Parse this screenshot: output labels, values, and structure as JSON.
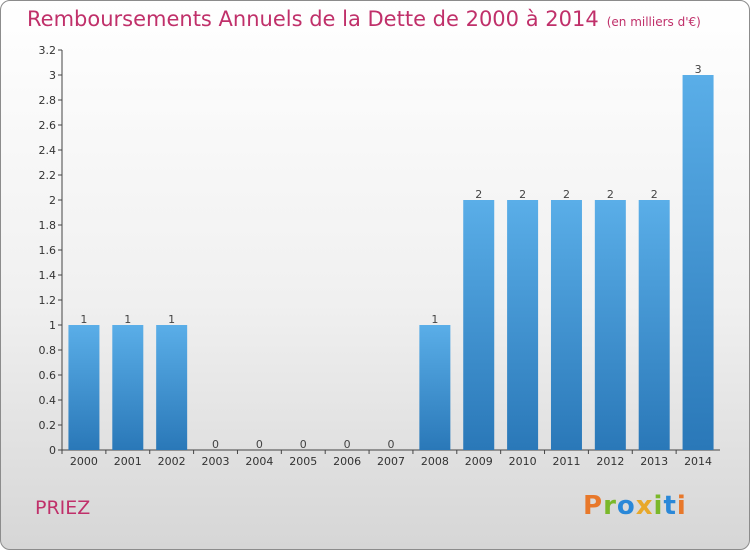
{
  "header": {
    "title": "Remboursements Annuels de la Dette de 2000 à 2014",
    "unit": "(en milliers d'€)"
  },
  "footer": {
    "city": "PRIEZ",
    "logo": "Proxiti"
  },
  "colors": {
    "title": "#c0306a",
    "bar_light": "#5aaee8",
    "bar_dark": "#2a78b8",
    "logo_letters": [
      "#e8782a",
      "#7ab82a",
      "#2a88d8",
      "#e8a82a",
      "#7ab82a",
      "#2a88d8",
      "#e8782a"
    ]
  },
  "chart_data": {
    "type": "bar",
    "categories": [
      "2000",
      "2001",
      "2002",
      "2003",
      "2004",
      "2005",
      "2006",
      "2007",
      "2008",
      "2009",
      "2010",
      "2011",
      "2012",
      "2013",
      "2014"
    ],
    "values": [
      1,
      1,
      1,
      0,
      0,
      0,
      0,
      0,
      1,
      2,
      2,
      2,
      2,
      2,
      3
    ],
    "data_labels": [
      "1",
      "1",
      "1",
      "0",
      "0",
      "0",
      "0",
      "0",
      "1",
      "2",
      "2",
      "2",
      "2",
      "2",
      "3"
    ],
    "title": "Remboursements Annuels de la Dette de 2000 à 2014",
    "xlabel": "",
    "ylabel": "",
    "ylim": [
      0,
      3.2
    ],
    "yticks": [
      0,
      0.2,
      0.4,
      0.6,
      0.8,
      1,
      1.2,
      1.4,
      1.6,
      1.8,
      2,
      2.2,
      2.4,
      2.6,
      2.8,
      3,
      3.2
    ],
    "ytick_labels": [
      "0",
      "0.2",
      "0.4",
      "0.6",
      "0.8",
      "1",
      "1.2",
      "1.4",
      "1.6",
      "1.8",
      "2",
      "2.2",
      "2.4",
      "2.6",
      "2.8",
      "3",
      "3.2"
    ],
    "grid": false,
    "legend": "none"
  }
}
